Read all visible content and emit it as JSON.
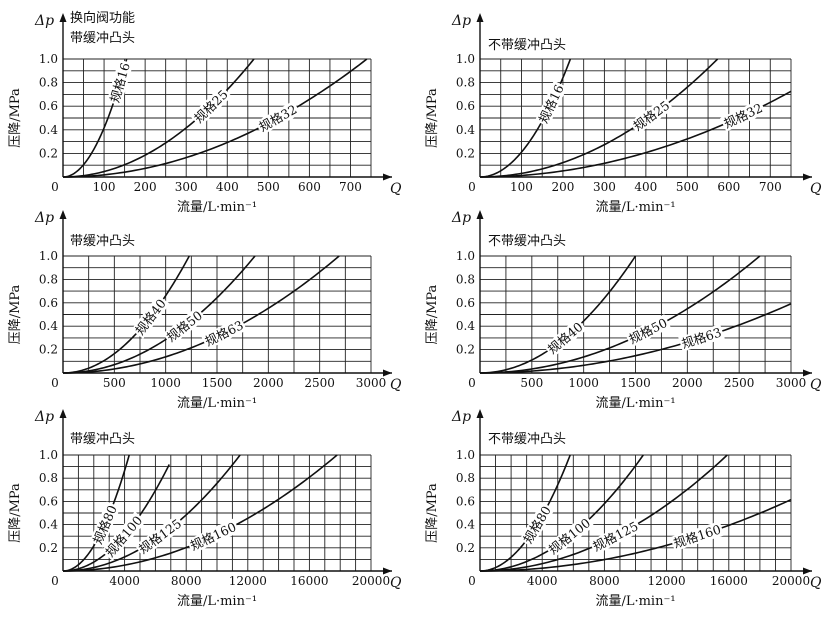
{
  "chart_data": [
    {
      "type": "line",
      "caption": [
        "换向阀功能",
        "带缓冲凸头"
      ],
      "ylabel": "压降/MPa",
      "xlabel": "流量/L·min⁻¹",
      "y_symbol": "Δp",
      "x_symbol": "Q",
      "xlim": [
        0,
        750
      ],
      "ylim": [
        0,
        1.0
      ],
      "x_ticks": [
        100,
        200,
        300,
        400,
        500,
        600,
        700
      ],
      "x_tick_labels": [
        "100",
        "200",
        "300",
        "400",
        "500",
        "600",
        "700"
      ],
      "y_ticks": [
        0.2,
        0.4,
        0.6,
        0.8,
        1.0
      ],
      "y_tick_labels": [
        "0.2",
        "0.4",
        "0.6",
        "0.8",
        "1.0"
      ],
      "x_grid_step": 50,
      "y_grid_step": 0.1,
      "series": [
        {
          "name": "规格16",
          "q_at_1MPa": 155,
          "label_at": 0.8
        },
        {
          "name": "规格25",
          "q_at_1MPa": 465,
          "label_at": 0.6
        },
        {
          "name": "规格32",
          "q_at_1MPa": 740,
          "label_at": 0.5
        }
      ]
    },
    {
      "type": "line",
      "caption": [
        "不带缓冲凸头"
      ],
      "ylabel": "压降/MPa",
      "xlabel": "流量/L·min⁻¹",
      "y_symbol": "Δp",
      "x_symbol": "Q",
      "xlim": [
        0,
        750
      ],
      "ylim": [
        0,
        1.0
      ],
      "x_ticks": [
        100,
        200,
        300,
        400,
        500,
        600,
        700
      ],
      "x_tick_labels": [
        "100",
        "200",
        "300",
        "400",
        "500",
        "600",
        "700"
      ],
      "y_ticks": [
        0.2,
        0.4,
        0.6,
        0.8,
        1.0
      ],
      "y_tick_labels": [
        "0.2",
        "0.4",
        "0.6",
        "0.8",
        "1.0"
      ],
      "x_grid_step": 50,
      "y_grid_step": 0.1,
      "series": [
        {
          "name": "规格16",
          "q_at_1MPa": 218,
          "label_at": 0.62
        },
        {
          "name": "规格25",
          "q_at_1MPa": 573,
          "label_at": 0.52
        },
        {
          "name": "规格32",
          "q_at_1MPa": 880,
          "label_at": 0.52
        }
      ]
    },
    {
      "type": "line",
      "caption": [
        "带缓冲凸头"
      ],
      "ylabel": "压降/MPa",
      "xlabel": "流量/L·min⁻¹",
      "y_symbol": "Δp",
      "x_symbol": "Q",
      "xlim": [
        0,
        3000
      ],
      "ylim": [
        0,
        1.0
      ],
      "x_ticks": [
        500,
        1000,
        1500,
        2000,
        2500,
        3000
      ],
      "x_tick_labels": [
        "500",
        "1000",
        "1500",
        "2000",
        "2500",
        "3000"
      ],
      "y_ticks": [
        0.2,
        0.4,
        0.6,
        0.8,
        1.0
      ],
      "y_tick_labels": [
        "0.2",
        "0.4",
        "0.6",
        "0.8",
        "1.0"
      ],
      "x_grid_step": 250,
      "y_grid_step": 0.1,
      "series": [
        {
          "name": "规格40",
          "q_at_1MPa": 1230,
          "label_at": 0.48
        },
        {
          "name": "规格50",
          "q_at_1MPa": 1870,
          "label_at": 0.4
        },
        {
          "name": "规格63",
          "q_at_1MPa": 2690,
          "label_at": 0.34
        }
      ]
    },
    {
      "type": "line",
      "caption": [
        "不带缓冲凸头"
      ],
      "ylabel": "压降/MPa",
      "xlabel": "流量/L·min⁻¹",
      "y_symbol": "Δp",
      "x_symbol": "Q",
      "xlim": [
        0,
        3000
      ],
      "ylim": [
        0,
        1.0
      ],
      "x_ticks": [
        500,
        1000,
        1500,
        2000,
        2500,
        3000
      ],
      "x_tick_labels": [
        "500",
        "1000",
        "1500",
        "2000",
        "2500",
        "3000"
      ],
      "y_ticks": [
        0.2,
        0.4,
        0.6,
        0.8,
        1.0
      ],
      "y_tick_labels": [
        "0.2",
        "0.4",
        "0.6",
        "0.8",
        "1.0"
      ],
      "x_grid_step": 250,
      "y_grid_step": 0.1,
      "series": [
        {
          "name": "规格40",
          "q_at_1MPa": 1500,
          "label_at": 0.3
        },
        {
          "name": "规格50",
          "q_at_1MPa": 2700,
          "label_at": 0.36
        },
        {
          "name": "规格63",
          "q_at_1MPa": 3900,
          "label_at": 0.3
        }
      ]
    },
    {
      "type": "line",
      "caption": [
        "带缓冲凸头"
      ],
      "ylabel": "压降/MPa",
      "xlabel": "流量/L·min⁻¹",
      "y_symbol": "Δp",
      "x_symbol": "Q",
      "xlim": [
        0,
        20000
      ],
      "ylim": [
        0,
        1.0
      ],
      "x_ticks": [
        4000,
        8000,
        12000,
        16000,
        20000
      ],
      "x_tick_labels": [
        "4000",
        "8000",
        "12000",
        "16000",
        "20000"
      ],
      "y_ticks": [
        0.2,
        0.4,
        0.6,
        0.8,
        1.0
      ],
      "y_tick_labels": [
        "0.2",
        "0.4",
        "0.6",
        "0.8",
        "1.0"
      ],
      "x_grid_step": 1000,
      "y_grid_step": 0.1,
      "series": [
        {
          "name": "规格80",
          "q_at_1MPa": 4300,
          "label_at": 0.4
        },
        {
          "name": "规格100",
          "q_at_1MPa": 7200,
          "label_at": 0.3,
          "q_end": 6900
        },
        {
          "name": "规格125",
          "q_at_1MPa": 11500,
          "label_at": 0.3
        },
        {
          "name": "规格160",
          "q_at_1MPa": 17800,
          "label_at": 0.3
        }
      ]
    },
    {
      "type": "line",
      "caption": [
        "不带缓冲凸头"
      ],
      "ylabel": "压降/MPa",
      "xlabel": "流量/L·min⁻¹",
      "y_symbol": "Δp",
      "x_symbol": "Q",
      "xlim": [
        0,
        20000
      ],
      "ylim": [
        0,
        1.0
      ],
      "x_ticks": [
        4000,
        8000,
        12000,
        16000,
        20000
      ],
      "x_tick_labels": [
        "4000",
        "8000",
        "12000",
        "16000",
        "20000"
      ],
      "y_ticks": [
        0.2,
        0.4,
        0.6,
        0.8,
        1.0
      ],
      "y_tick_labels": [
        "0.2",
        "0.4",
        "0.6",
        "0.8",
        "1.0"
      ],
      "x_grid_step": 1000,
      "y_grid_step": 0.1,
      "series": [
        {
          "name": "规格80",
          "q_at_1MPa": 5800,
          "label_at": 0.4
        },
        {
          "name": "规格100",
          "q_at_1MPa": 10500,
          "label_at": 0.3
        },
        {
          "name": "规格125",
          "q_at_1MPa": 15900,
          "label_at": 0.3
        },
        {
          "name": "规格160",
          "q_at_1MPa": 25500,
          "label_at": 0.3
        }
      ]
    }
  ]
}
